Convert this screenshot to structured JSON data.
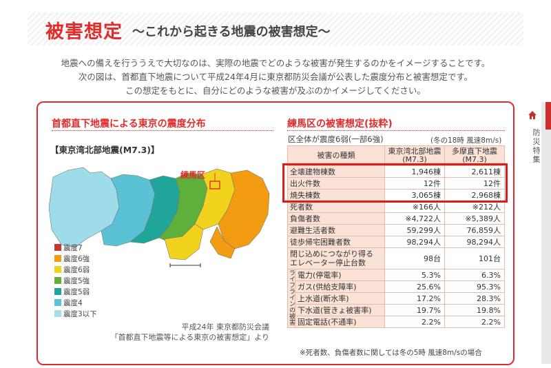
{
  "header": {
    "title": "被害想定",
    "subtitle": "〜これから起きる地震の被害想定〜"
  },
  "intro": [
    "地震への備えを行ううえで大切なのは、実際の地震でどのような被害が発生するのかをイメージすることです。",
    "次の図は、首都直下地震について平成24年4月に東京都防災会議が公表した震度分布と被害想定です。",
    "この想定をもとに、自分にどのような被害が及ぶのかイメージしてください。"
  ],
  "side_tab": {
    "label": "防災特集"
  },
  "left": {
    "title": "首都直下地震による東京の震度分布",
    "quake_name": "【東京湾北部地震(M7.3)】",
    "map_label": "練馬区",
    "legend": [
      {
        "label": "震度7",
        "color": "#c0392b"
      },
      {
        "label": "震度6強",
        "color": "#f39c12"
      },
      {
        "label": "震度6弱",
        "color": "#f1d31e"
      },
      {
        "label": "震度5強",
        "color": "#5fb03a"
      },
      {
        "label": "震度5弱",
        "color": "#1fa59a"
      },
      {
        "label": "震度4",
        "color": "#5bc2d6"
      },
      {
        "label": "震度3以下",
        "color": "#a7dfe9"
      }
    ],
    "source_line1": "平成24年 東京都防災会議",
    "source_line2": "「首都直下地震等による東京の被害想定」より"
  },
  "right": {
    "title": "練馬区の被害想定(抜粋)",
    "context_left": "区全体が震度6弱(一部6強)",
    "context_right": "(冬の18時 風速8m/s)",
    "col_header": "被害の種類",
    "col1": "東京湾北部地震\n(M7.3)",
    "col2": "多摩直下地震\n(M7.3)",
    "rows": [
      {
        "label": "全壊建物棟数",
        "v1": "1,946棟",
        "v2": "2,611棟"
      },
      {
        "label": "出火件数",
        "v1": "12件",
        "v2": "12件"
      },
      {
        "label": "焼失棟数",
        "v1": "3,065棟",
        "v2": "2,968棟"
      },
      {
        "label": "死者数",
        "v1": "※166人",
        "v2": "※212人"
      },
      {
        "label": "負傷者数",
        "v1": "※4,722人",
        "v2": "※5,389人"
      },
      {
        "label": "避難生活者数",
        "v1": "59,299人",
        "v2": "76,859人"
      },
      {
        "label": "徒歩帰宅困難者数",
        "v1": "98,294人",
        "v2": "98,294人"
      },
      {
        "label": "閉じ込めにつながり得る\nエレベーター停止台数",
        "v1": "98台",
        "v2": "101台"
      }
    ],
    "lifeline_title": "ライフラインの被害",
    "lifeline_rows": [
      {
        "label": "電力(停電率)",
        "v1": "5.3%",
        "v2": "6.3%"
      },
      {
        "label": "ガス(供給支障率)",
        "v1": "25.6%",
        "v2": "95.3%"
      },
      {
        "label": "上水道(断水率)",
        "v1": "17.2%",
        "v2": "28.3%"
      },
      {
        "label": "下水道(管きょ被害率)",
        "v1": "19.7%",
        "v2": "19.8%"
      },
      {
        "label": "固定電話(不通率)",
        "v1": "2.2%",
        "v2": "2.2%"
      }
    ],
    "note": "※死者数、負傷者数に関しては冬の5時 風速8m/sの場合"
  }
}
